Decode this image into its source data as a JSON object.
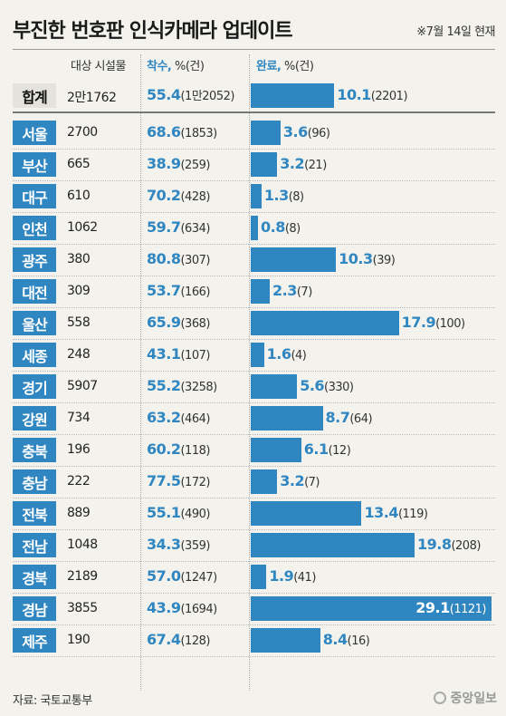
{
  "title": "부진한 번호판 인식카메라 업데이트",
  "date_note": "※7월 14일 현재",
  "headers": {
    "facilities": "대상 시설물",
    "started_label": "착수,",
    "started_unit": " %(건)",
    "done_label": "완료,",
    "done_unit": " %(건)"
  },
  "source": "자료: 국토교통부",
  "logo": "중앙일보",
  "colors": {
    "accent": "#2f86c1",
    "background": "#f3f2ed"
  },
  "chart_data": {
    "type": "table",
    "title": "부진한 번호판 인식카메라 업데이트",
    "columns": [
      "",
      "대상 시설물",
      "착수, %(건)",
      "완료, %(건)"
    ],
    "rows": [
      {
        "region": "합계",
        "facilities": "2만1762",
        "started_pct": "55.4",
        "started_cnt": "(1만2052)",
        "done_pct": "10.1",
        "done_cnt": "(2201)",
        "done_value": 10.1,
        "total": true
      },
      {
        "region": "서울",
        "facilities": "2700",
        "started_pct": "68.6",
        "started_cnt": "(1853)",
        "done_pct": "3.6",
        "done_cnt": "(96)",
        "done_value": 3.6
      },
      {
        "region": "부산",
        "facilities": "665",
        "started_pct": "38.9",
        "started_cnt": "(259)",
        "done_pct": "3.2",
        "done_cnt": "(21)",
        "done_value": 3.2
      },
      {
        "region": "대구",
        "facilities": "610",
        "started_pct": "70.2",
        "started_cnt": "(428)",
        "done_pct": "1.3",
        "done_cnt": "(8)",
        "done_value": 1.3
      },
      {
        "region": "인천",
        "facilities": "1062",
        "started_pct": "59.7",
        "started_cnt": "(634)",
        "done_pct": "0.8",
        "done_cnt": "(8)",
        "done_value": 0.8
      },
      {
        "region": "광주",
        "facilities": "380",
        "started_pct": "80.8",
        "started_cnt": "(307)",
        "done_pct": "10.3",
        "done_cnt": "(39)",
        "done_value": 10.3
      },
      {
        "region": "대전",
        "facilities": "309",
        "started_pct": "53.7",
        "started_cnt": "(166)",
        "done_pct": "2.3",
        "done_cnt": "(7)",
        "done_value": 2.3
      },
      {
        "region": "울산",
        "facilities": "558",
        "started_pct": "65.9",
        "started_cnt": "(368)",
        "done_pct": "17.9",
        "done_cnt": "(100)",
        "done_value": 17.9
      },
      {
        "region": "세종",
        "facilities": "248",
        "started_pct": "43.1",
        "started_cnt": "(107)",
        "done_pct": "1.6",
        "done_cnt": "(4)",
        "done_value": 1.6
      },
      {
        "region": "경기",
        "facilities": "5907",
        "started_pct": "55.2",
        "started_cnt": "(3258)",
        "done_pct": "5.6",
        "done_cnt": "(330)",
        "done_value": 5.6
      },
      {
        "region": "강원",
        "facilities": "734",
        "started_pct": "63.2",
        "started_cnt": "(464)",
        "done_pct": "8.7",
        "done_cnt": "(64)",
        "done_value": 8.7
      },
      {
        "region": "충북",
        "facilities": "196",
        "started_pct": "60.2",
        "started_cnt": "(118)",
        "done_pct": "6.1",
        "done_cnt": "(12)",
        "done_value": 6.1
      },
      {
        "region": "충남",
        "facilities": "222",
        "started_pct": "77.5",
        "started_cnt": "(172)",
        "done_pct": "3.2",
        "done_cnt": "(7)",
        "done_value": 3.2
      },
      {
        "region": "전북",
        "facilities": "889",
        "started_pct": "55.1",
        "started_cnt": "(490)",
        "done_pct": "13.4",
        "done_cnt": "(119)",
        "done_value": 13.4
      },
      {
        "region": "전남",
        "facilities": "1048",
        "started_pct": "34.3",
        "started_cnt": "(359)",
        "done_pct": "19.8",
        "done_cnt": "(208)",
        "done_value": 19.8
      },
      {
        "region": "경북",
        "facilities": "2189",
        "started_pct": "57.0",
        "started_cnt": "(1247)",
        "done_pct": "1.9",
        "done_cnt": "(41)",
        "done_value": 1.9
      },
      {
        "region": "경남",
        "facilities": "3855",
        "started_pct": "43.9",
        "started_cnt": "(1694)",
        "done_pct": "29.1",
        "done_cnt": "(1121)",
        "done_value": 29.1
      },
      {
        "region": "제주",
        "facilities": "190",
        "started_pct": "67.4",
        "started_cnt": "(128)",
        "done_pct": "8.4",
        "done_cnt": "(16)",
        "done_value": 8.4
      }
    ]
  }
}
